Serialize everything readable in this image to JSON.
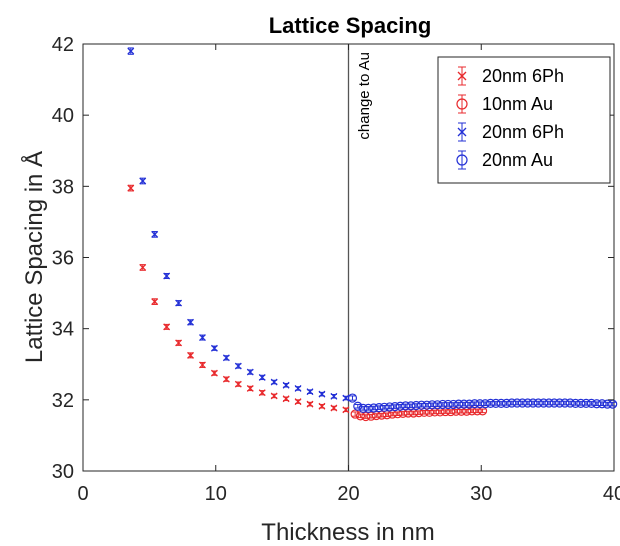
{
  "chart_data": {
    "type": "scatter",
    "title": "Lattice Spacing",
    "xlabel": "Thickness in nm",
    "ylabel": "Lattice Spacing in Å",
    "xlim": [
      0,
      40
    ],
    "ylim": [
      30,
      42
    ],
    "x_ticks": [
      0,
      10,
      20,
      30,
      40
    ],
    "y_ticks": [
      30,
      32,
      34,
      36,
      38,
      40,
      42
    ],
    "grid": false,
    "legend_position": "top-right",
    "annotation": {
      "text": "change to Au",
      "x": 20
    },
    "colors": {
      "red": "#e8292c",
      "blue": "#2330d6",
      "axis": "#262626",
      "line": "#555555"
    },
    "series": [
      {
        "name": "20nm 6Ph",
        "marker": "x",
        "color": "#e8292c",
        "x": [
          3.6,
          4.5,
          5.4,
          6.3,
          7.2,
          8.1,
          9.0,
          9.9,
          10.8,
          11.7,
          12.6,
          13.5,
          14.4,
          15.3,
          16.2,
          17.1,
          18.0,
          18.9,
          19.8
        ],
        "y": [
          37.95,
          35.72,
          34.76,
          34.05,
          33.6,
          33.25,
          32.98,
          32.75,
          32.58,
          32.44,
          32.32,
          32.2,
          32.11,
          32.03,
          31.95,
          31.88,
          31.82,
          31.77,
          31.72
        ],
        "err": [
          0.08,
          0.08,
          0.08,
          0.07,
          0.07,
          0.07,
          0.07,
          0.06,
          0.06,
          0.06,
          0.06,
          0.06,
          0.05,
          0.05,
          0.05,
          0.05,
          0.05,
          0.05,
          0.05
        ]
      },
      {
        "name": "10nm Au",
        "marker": "o",
        "color": "#e8292c",
        "x": [
          20.5,
          20.9,
          21.3,
          21.7,
          22.1,
          22.5,
          22.9,
          23.3,
          23.7,
          24.1,
          24.5,
          24.9,
          25.3,
          25.7,
          26.1,
          26.5,
          26.9,
          27.3,
          27.7,
          28.1,
          28.5,
          28.9,
          29.3,
          29.7,
          30.1
        ],
        "y": [
          31.6,
          31.55,
          31.53,
          31.54,
          31.56,
          31.57,
          31.58,
          31.6,
          31.61,
          31.62,
          31.63,
          31.63,
          31.64,
          31.65,
          31.65,
          31.66,
          31.66,
          31.67,
          31.67,
          31.68,
          31.68,
          31.68,
          31.69,
          31.69,
          31.69
        ],
        "err": [
          0.06,
          0.05,
          0.05,
          0.05,
          0.05,
          0.05,
          0.05,
          0.05,
          0.05,
          0.05,
          0.05,
          0.05,
          0.05,
          0.05,
          0.05,
          0.05,
          0.05,
          0.05,
          0.05,
          0.05,
          0.05,
          0.05,
          0.05,
          0.05,
          0.05
        ]
      },
      {
        "name": "20nm 6Ph",
        "marker": "x",
        "color": "#2330d6",
        "x": [
          3.6,
          4.5,
          5.4,
          6.3,
          7.2,
          8.1,
          9.0,
          9.9,
          10.8,
          11.7,
          12.6,
          13.5,
          14.4,
          15.3,
          16.2,
          17.1,
          18.0,
          18.9,
          19.8
        ],
        "y": [
          41.8,
          38.15,
          36.65,
          35.48,
          34.72,
          34.18,
          33.75,
          33.45,
          33.18,
          32.95,
          32.78,
          32.63,
          32.5,
          32.41,
          32.32,
          32.23,
          32.16,
          32.1,
          32.05
        ],
        "err": [
          0.09,
          0.08,
          0.08,
          0.07,
          0.07,
          0.07,
          0.07,
          0.06,
          0.06,
          0.06,
          0.06,
          0.06,
          0.05,
          0.05,
          0.05,
          0.05,
          0.05,
          0.05,
          0.05
        ]
      },
      {
        "name": "20nm Au",
        "marker": "o",
        "color": "#2330d6",
        "x": [
          20.3,
          20.7,
          21.1,
          21.5,
          21.9,
          22.3,
          22.7,
          23.1,
          23.5,
          23.9,
          24.3,
          24.7,
          25.1,
          25.5,
          25.9,
          26.3,
          26.7,
          27.1,
          27.5,
          27.9,
          28.3,
          28.7,
          29.1,
          29.5,
          29.9,
          30.3,
          30.7,
          31.1,
          31.5,
          31.9,
          32.3,
          32.7,
          33.1,
          33.5,
          33.9,
          34.3,
          34.7,
          35.1,
          35.5,
          35.9,
          36.3,
          36.7,
          37.1,
          37.5,
          37.9,
          38.3,
          38.7,
          39.1,
          39.5,
          39.9
        ],
        "y": [
          32.05,
          31.82,
          31.76,
          31.76,
          31.77,
          31.78,
          31.79,
          31.8,
          31.81,
          31.82,
          31.83,
          31.83,
          31.84,
          31.85,
          31.85,
          31.86,
          31.86,
          31.87,
          31.87,
          31.87,
          31.88,
          31.88,
          31.88,
          31.89,
          31.89,
          31.89,
          31.9,
          31.9,
          31.9,
          31.9,
          31.91,
          31.91,
          31.91,
          31.91,
          31.91,
          31.91,
          31.91,
          31.91,
          31.91,
          31.91,
          31.91,
          31.91,
          31.9,
          31.9,
          31.9,
          31.9,
          31.89,
          31.89,
          31.88,
          31.88
        ],
        "err": [
          0.06,
          0.05,
          0.05,
          0.05,
          0.05,
          0.05,
          0.05,
          0.05,
          0.05,
          0.05,
          0.05,
          0.05,
          0.05,
          0.05,
          0.05,
          0.05,
          0.05,
          0.05,
          0.05,
          0.05,
          0.05,
          0.05,
          0.05,
          0.05,
          0.05,
          0.05,
          0.05,
          0.05,
          0.05,
          0.05,
          0.05,
          0.05,
          0.05,
          0.05,
          0.05,
          0.05,
          0.05,
          0.05,
          0.05,
          0.05,
          0.05,
          0.05,
          0.05,
          0.05,
          0.05,
          0.05,
          0.05,
          0.05,
          0.05,
          0.05
        ]
      }
    ]
  }
}
